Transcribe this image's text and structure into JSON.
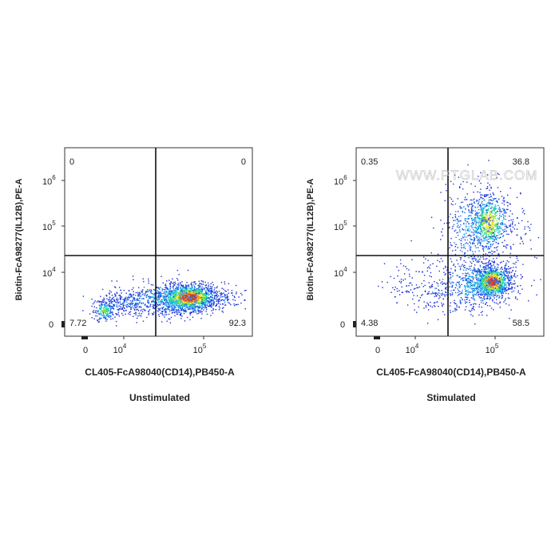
{
  "watermark": "WWW.PTGLAB.COM",
  "chart_data": [
    {
      "type": "scatter",
      "subtype": "flow-cytometry-density-dot-plot",
      "caption": "Unstimulated",
      "xlabel": "CL405-FcA98040(CD14),PB450-A",
      "ylabel": "Biotin-FcA98277(IL12B),PE-A",
      "x_ticks": [
        {
          "exp": "0"
        },
        {
          "base": "10",
          "exp": "4"
        },
        {
          "base": "10",
          "exp": "5"
        }
      ],
      "y_ticks": [
        {
          "exp": "0"
        },
        {
          "base": "10",
          "exp": "4"
        },
        {
          "base": "10",
          "exp": "5"
        },
        {
          "base": "10",
          "exp": "6"
        }
      ],
      "quadrant_percentages": {
        "upper_left": "0",
        "upper_right": "0",
        "lower_left": "7.72",
        "lower_right": "92.3"
      },
      "grid": false
    },
    {
      "type": "scatter",
      "subtype": "flow-cytometry-density-dot-plot",
      "caption": "Stimulated",
      "xlabel": "CL405-FcA98040(CD14),PB450-A",
      "ylabel": "Biotin-FcA98277(IL12B),PE-A",
      "x_ticks": [
        {
          "exp": "0"
        },
        {
          "base": "10",
          "exp": "4"
        },
        {
          "base": "10",
          "exp": "5"
        }
      ],
      "y_ticks": [
        {
          "exp": "0"
        },
        {
          "base": "10",
          "exp": "4"
        },
        {
          "base": "10",
          "exp": "5"
        },
        {
          "base": "10",
          "exp": "6"
        }
      ],
      "quadrant_percentages": {
        "upper_left": "0.35",
        "upper_right": "36.8",
        "lower_left": "4.38",
        "lower_right": "58.5"
      },
      "grid": false
    }
  ]
}
